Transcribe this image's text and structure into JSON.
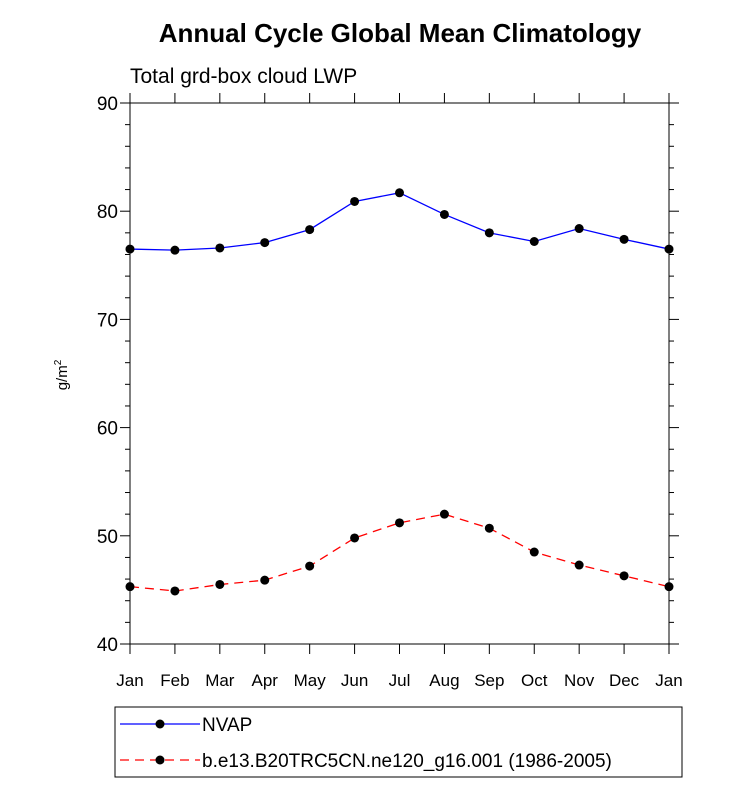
{
  "chart_data": {
    "type": "line",
    "title": "Annual Cycle Global Mean Climatology",
    "subtitle": "Total grd-box cloud LWP",
    "xlabel": "",
    "ylabel": "g/m",
    "ylabel_sup": "2",
    "ylim": [
      40,
      90
    ],
    "yticks": [
      "40",
      "50",
      "60",
      "70",
      "80",
      "90"
    ],
    "categories": [
      "Jan",
      "Feb",
      "Mar",
      "Apr",
      "May",
      "Jun",
      "Jul",
      "Aug",
      "Sep",
      "Oct",
      "Nov",
      "Dec",
      "Jan"
    ],
    "series": [
      {
        "name": "NVAP",
        "color": "#0000ff",
        "style": "solid",
        "values": [
          76.5,
          76.4,
          76.6,
          77.1,
          78.3,
          80.9,
          81.7,
          79.7,
          78.0,
          77.2,
          78.4,
          77.4,
          76.5
        ]
      },
      {
        "name": "b.e13.B20TRC5CN.ne120_g16.001 (1986-2005)",
        "color": "#ff0000",
        "style": "dashed",
        "values": [
          45.3,
          44.9,
          45.5,
          45.9,
          47.2,
          49.8,
          51.2,
          52.0,
          50.7,
          48.5,
          47.3,
          46.3,
          45.3
        ]
      }
    ],
    "legend_position": "bottom"
  }
}
